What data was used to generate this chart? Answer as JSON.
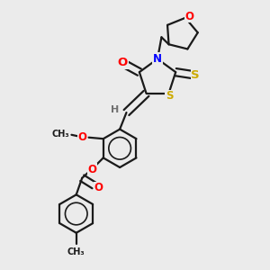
{
  "bg_color": "#ebebeb",
  "line_color": "#1a1a1a",
  "bond_width": 1.6,
  "atom_colors": {
    "O": "#ff0000",
    "N": "#0000ff",
    "S": "#ccaa00",
    "H": "#707070",
    "C": "#1a1a1a"
  },
  "font_size": 8.5
}
